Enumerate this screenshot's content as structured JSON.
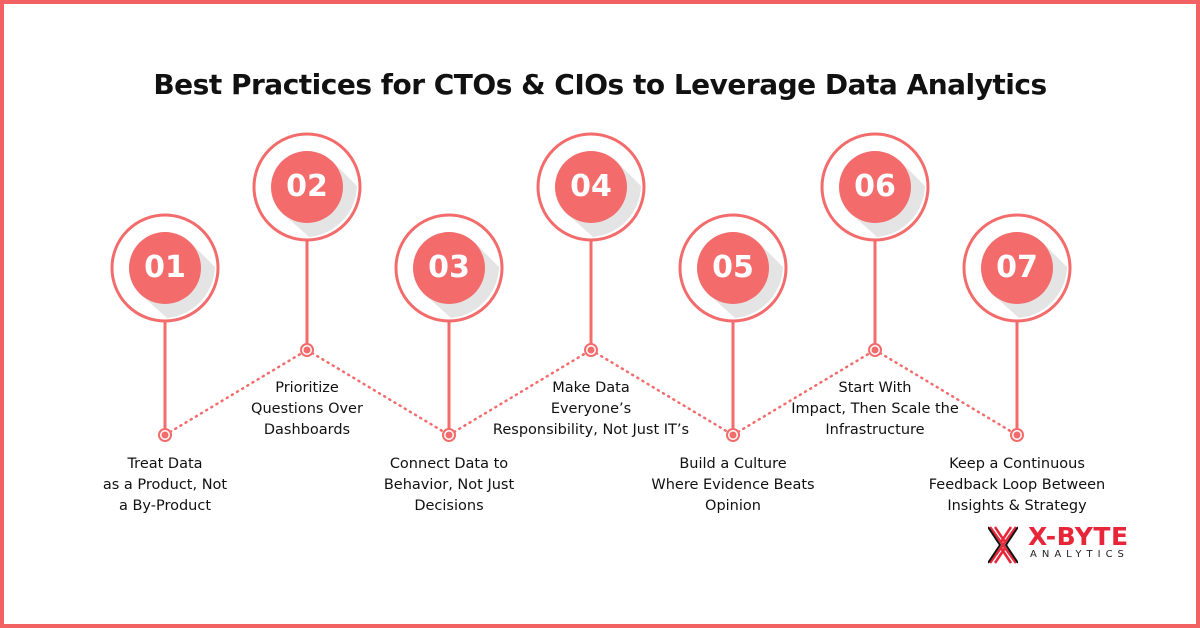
{
  "title": "Best Practices for CTOs & CIOs to Leverage Data Analytics",
  "colors": {
    "accent": "#f46b6b",
    "border": "#f26262",
    "logo_red": "#e8263a"
  },
  "steps": [
    {
      "number": "01",
      "lines": [
        "Treat Data",
        "as a Product, Not",
        "a By-Product"
      ]
    },
    {
      "number": "02",
      "lines": [
        "Prioritize",
        "Questions Over",
        "Dashboards"
      ]
    },
    {
      "number": "03",
      "lines": [
        "Connect Data to",
        "Behavior, Not Just",
        "Decisions"
      ]
    },
    {
      "number": "04",
      "lines": [
        "Make Data",
        "Everyone’s",
        "Responsibility, Not Just IT’s"
      ]
    },
    {
      "number": "05",
      "lines": [
        "Build a Culture",
        "Where Evidence Beats",
        "Opinion"
      ]
    },
    {
      "number": "06",
      "lines": [
        "Start With",
        "Impact, Then Scale the",
        "Infrastructure"
      ]
    },
    {
      "number": "07",
      "lines": [
        "Keep a Continuous",
        "Feedback Loop Between",
        "Insights & Strategy"
      ]
    }
  ],
  "logo": {
    "name": "X-BYTE",
    "sub": "ANALYTICS"
  }
}
